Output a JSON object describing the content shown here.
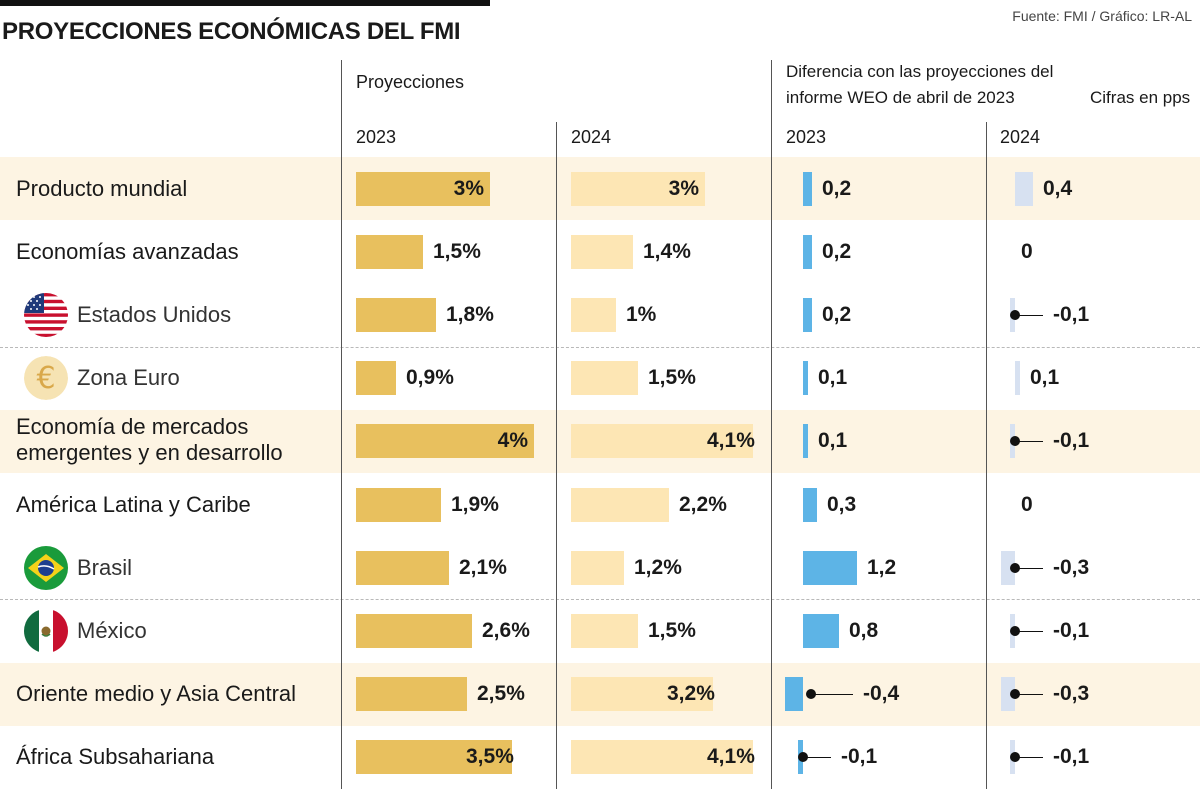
{
  "header": {
    "title": "PROYECCIONES ECONÓMICAS DEL FMI",
    "source": "Fuente: FMI / Gráfico: LR-AL",
    "projections_label": "Proyecciones",
    "difference_label_line1": "Diferencia con las proyecciones del",
    "difference_label_line2": "informe WEO de abril de 2023",
    "units_label": "Cifras en pps",
    "year_2023": "2023",
    "year_2024": "2024"
  },
  "colors": {
    "bar_2023": "#e8c05e",
    "bar_2024": "#fde6b4",
    "diff_2023": "#5db4e6",
    "diff_2024": "#d7e1f1",
    "highlight_row": "#fdf4e3"
  },
  "chart_data": {
    "type": "table",
    "title": "PROYECCIONES ECONÓMICAS DEL FMI",
    "rows": [
      {
        "name": "Producto mundial",
        "sub": false,
        "highlight": true,
        "flag": null,
        "p2023": 3.0,
        "p2023_label": "3%",
        "p2024": 3.0,
        "p2024_label": "3%",
        "d2023": 0.2,
        "d2023_label": "0,2",
        "d2024": 0.4,
        "d2024_label": "0,4"
      },
      {
        "name": "Economías avanzadas",
        "sub": false,
        "highlight": false,
        "flag": null,
        "p2023": 1.5,
        "p2023_label": "1,5%",
        "p2024": 1.4,
        "p2024_label": "1,4%",
        "d2023": 0.2,
        "d2023_label": "0,2",
        "d2024": 0,
        "d2024_label": "0"
      },
      {
        "name": "Estados Unidos",
        "sub": true,
        "highlight": false,
        "flag": "us-flag-icon",
        "p2023": 1.8,
        "p2023_label": "1,8%",
        "p2024": 1.0,
        "p2024_label": "1%",
        "d2023": 0.2,
        "d2023_label": "0,2",
        "d2024": -0.1,
        "d2024_label": "-0,1"
      },
      {
        "name": "Zona Euro",
        "sub": true,
        "highlight": false,
        "flag": "euro-icon",
        "p2023": 0.9,
        "p2023_label": "0,9%",
        "p2024": 1.5,
        "p2024_label": "1,5%",
        "d2023": 0.1,
        "d2023_label": "0,1",
        "d2024": 0.1,
        "d2024_label": "0,1"
      },
      {
        "name": "Economía de mercados emergentes y en desarrollo",
        "name_line1": "Economía de mercados",
        "name_line2": "emergentes y en desarrollo",
        "sub": false,
        "highlight": true,
        "flag": null,
        "p2023": 4.0,
        "p2023_label": "4%",
        "p2024": 4.1,
        "p2024_label": "4,1%",
        "d2023": 0.1,
        "d2023_label": "0,1",
        "d2024": -0.1,
        "d2024_label": "-0,1"
      },
      {
        "name": "América Latina y Caribe",
        "sub": false,
        "highlight": false,
        "flag": null,
        "p2023": 1.9,
        "p2023_label": "1,9%",
        "p2024": 2.2,
        "p2024_label": "2,2%",
        "d2023": 0.3,
        "d2023_label": "0,3",
        "d2024": 0,
        "d2024_label": "0"
      },
      {
        "name": "Brasil",
        "sub": true,
        "highlight": false,
        "flag": "brazil-flag-icon",
        "p2023": 2.1,
        "p2023_label": "2,1%",
        "p2024": 1.2,
        "p2024_label": "1,2%",
        "d2023": 1.2,
        "d2023_label": "1,2",
        "d2024": -0.3,
        "d2024_label": "-0,3"
      },
      {
        "name": "México",
        "sub": true,
        "highlight": false,
        "flag": "mexico-flag-icon",
        "p2023": 2.6,
        "p2023_label": "2,6%",
        "p2024": 1.5,
        "p2024_label": "1,5%",
        "d2023": 0.8,
        "d2023_label": "0,8",
        "d2024": -0.1,
        "d2024_label": "-0,1"
      },
      {
        "name": "Oriente medio y Asia Central",
        "sub": false,
        "highlight": true,
        "flag": null,
        "p2023": 2.5,
        "p2023_label": "2,5%",
        "p2024": 3.2,
        "p2024_label": "3,2%",
        "d2023": -0.4,
        "d2023_label": "-0,4",
        "d2024": -0.3,
        "d2024_label": "-0,3"
      },
      {
        "name": "África Subsahariana",
        "sub": false,
        "highlight": false,
        "flag": null,
        "p2023": 3.5,
        "p2023_label": "3,5%",
        "p2024": 4.1,
        "p2024_label": "4,1%",
        "d2023": -0.1,
        "d2023_label": "-0,1",
        "d2024": -0.1,
        "d2024_label": "-0,1"
      }
    ]
  }
}
